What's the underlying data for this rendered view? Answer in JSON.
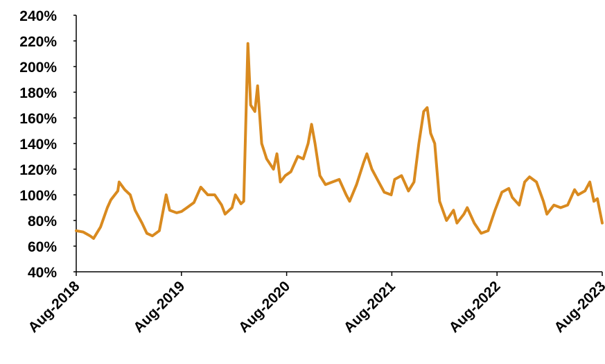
{
  "chart_data": {
    "type": "line",
    "color": "#d98a1f",
    "x": [
      2018.583,
      2018.649,
      2018.715,
      2018.748,
      2018.814,
      2018.879,
      2018.912,
      2018.978,
      2018.991,
      2019.044,
      2019.096,
      2019.142,
      2019.208,
      2019.254,
      2019.307,
      2019.373,
      2019.438,
      2019.471,
      2019.537,
      2019.583,
      2019.636,
      2019.702,
      2019.767,
      2019.833,
      2019.899,
      2019.965,
      2019.998,
      2020.064,
      2020.096,
      2020.149,
      2020.175,
      2020.215,
      2020.241,
      2020.281,
      2020.307,
      2020.346,
      2020.393,
      2020.458,
      2020.491,
      2020.524,
      2020.57,
      2020.623,
      2020.689,
      2020.741,
      2020.787,
      2020.82,
      2020.853,
      2020.899,
      2020.952,
      2021.018,
      2021.083,
      2021.149,
      2021.182,
      2021.248,
      2021.314,
      2021.346,
      2021.393,
      2021.445,
      2021.511,
      2021.577,
      2021.61,
      2021.675,
      2021.741,
      2021.794,
      2021.84,
      2021.886,
      2021.919,
      2021.952,
      2021.991,
      2022.037,
      2022.103,
      2022.169,
      2022.202,
      2022.268,
      2022.3,
      2022.366,
      2022.432,
      2022.498,
      2022.564,
      2022.629,
      2022.695,
      2022.728,
      2022.794,
      2022.846,
      2022.892,
      2022.958,
      2023.024,
      2023.057,
      2023.123,
      2023.188,
      2023.254,
      2023.32,
      2023.353,
      2023.419,
      2023.465,
      2023.504,
      2023.537,
      2023.583
    ],
    "values": [
      72,
      71,
      68,
      66,
      75,
      90,
      96,
      103,
      110,
      104,
      100,
      88,
      78,
      70,
      68,
      72,
      100,
      88,
      86,
      87,
      90,
      94,
      106,
      100,
      100,
      92,
      85,
      90,
      100,
      93,
      95,
      218,
      170,
      165,
      185,
      140,
      128,
      120,
      132,
      110,
      115,
      118,
      130,
      128,
      140,
      155,
      140,
      115,
      108,
      110,
      112,
      100,
      95,
      108,
      125,
      132,
      120,
      112,
      102,
      100,
      112,
      115,
      103,
      110,
      140,
      165,
      168,
      148,
      140,
      95,
      80,
      88,
      78,
      85,
      90,
      78,
      70,
      72,
      88,
      102,
      105,
      98,
      92,
      110,
      114,
      110,
      95,
      85,
      92,
      90,
      92,
      104,
      100,
      103,
      110,
      95,
      97,
      78
    ],
    "xlim": [
      2018.583,
      2023.583
    ],
    "xticks": [
      {
        "value": 2018.583,
        "label": "Aug-2018"
      },
      {
        "value": 2019.583,
        "label": "Aug-2019"
      },
      {
        "value": 2020.583,
        "label": "Aug-2020"
      },
      {
        "value": 2021.583,
        "label": "Aug-2021"
      },
      {
        "value": 2022.583,
        "label": "Aug-2022"
      },
      {
        "value": 2023.583,
        "label": "Aug-2023"
      }
    ],
    "ylim": [
      40,
      240
    ],
    "yticks": [
      {
        "value": 40,
        "label": "40%"
      },
      {
        "value": 60,
        "label": "60%"
      },
      {
        "value": 80,
        "label": "80%"
      },
      {
        "value": 100,
        "label": "100%"
      },
      {
        "value": 120,
        "label": "120%"
      },
      {
        "value": 140,
        "label": "140%"
      },
      {
        "value": 160,
        "label": "160%"
      },
      {
        "value": 180,
        "label": "180%"
      },
      {
        "value": 200,
        "label": "200%"
      },
      {
        "value": 220,
        "label": "220%"
      },
      {
        "value": 240,
        "label": "240%"
      }
    ],
    "grid": false
  }
}
